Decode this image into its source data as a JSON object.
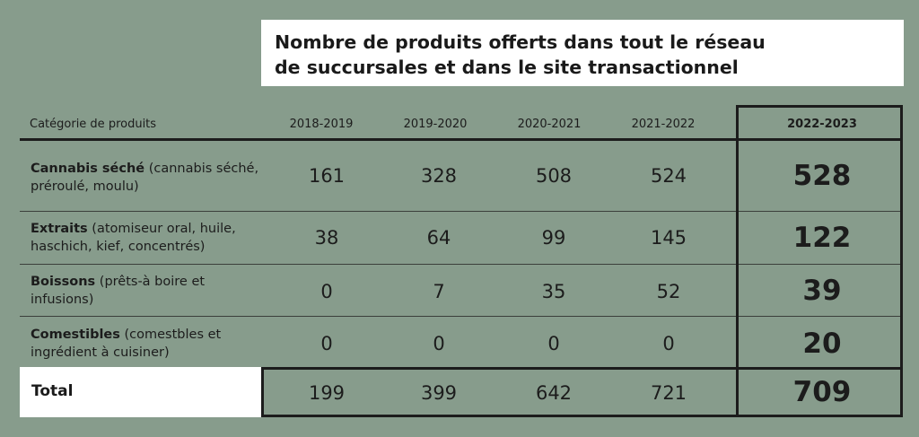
{
  "title": {
    "line1": "Nombre de produits offerts dans tout le réseau",
    "line2": "de succursales et dans le site transactionnel"
  },
  "columns": {
    "category": "Catégorie de produits",
    "years": [
      "2018-2019",
      "2019-2020",
      "2020-2021",
      "2021-2022",
      "2022-2023"
    ]
  },
  "rows": [
    {
      "name": "Cannabis séché",
      "detail": " (cannabis séché, préroulé, moulu)",
      "values": [
        "161",
        "328",
        "508",
        "524",
        "528"
      ]
    },
    {
      "name": "Extraits",
      "detail": " (atomiseur oral, huile, haschich, kief, concentrés)",
      "values": [
        "38",
        "64",
        "99",
        "145",
        "122"
      ]
    },
    {
      "name": "Boissons",
      "detail": " (prêts-à boire et infusions)",
      "values": [
        "0",
        "7",
        "35",
        "52",
        "39"
      ]
    },
    {
      "name": "Comestibles",
      "detail": " (comestbles et ingrédient à cuisiner)",
      "values": [
        "0",
        "0",
        "0",
        "0",
        "20"
      ]
    }
  ],
  "total": {
    "label": "Total",
    "values": [
      "199",
      "399",
      "642",
      "721",
      "709"
    ]
  },
  "colors": {
    "background": "#879c8c",
    "text": "#1c1c1c",
    "box": "#ffffff"
  }
}
